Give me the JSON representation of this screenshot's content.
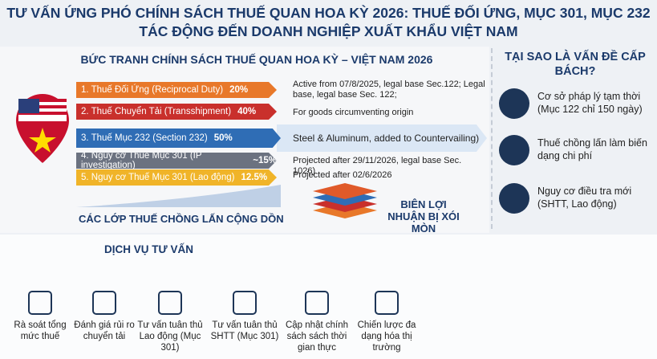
{
  "header": {
    "title_line1": "TƯ VẤN ỨNG PHÓ CHÍNH SÁCH THUẾ QUAN HOA KỲ 2026: THUẾ ĐỐI ỨNG, MỤC 301, MỤC 232",
    "title_line2": "TÁC ĐỘNG ĐẾN DOANH NGHIỆP XUẤT KHẨU VIỆT NAM"
  },
  "left": {
    "title": "BỨC TRANH CHÍNH SÁCH THUẾ QUAN HOA KỲ – VIỆT NAM 2026",
    "layers": [
      {
        "label": "1. Thuế Đối Ứng (Reciprocal Duty)",
        "rate": "20%",
        "note": "Active from 07/8/2025, legal base Sec.122; Legal base, legal base Sec. 122;"
      },
      {
        "label": "2. Thuế Chuyển Tải (Transshipment)",
        "rate": "40%",
        "note": "For goods circumventing origin"
      },
      {
        "label": "3. Thuế Mục 232 (Section 232)",
        "rate": "50%",
        "note": "Steel & Aluminum, added to Countervailing)"
      },
      {
        "label": "4. Nguy cơ Thuế Mục 301 (IP investigation)",
        "rate": "~15%",
        "note": "Projected after 29/11/2026, legal base Sec. 1026)"
      },
      {
        "label": "5. Nguy cơ Thuế Mục 301 (Lao động)",
        "rate": "12.5%",
        "note": "Projected after 02/6/2026"
      }
    ],
    "stack_caption": "CÁC LỚP THUẾ CHỒNG LẤN CỘNG DỒN",
    "margin_caption": "BIÊN LỢI NHUẬN BỊ XÓI MÒN"
  },
  "right": {
    "title": "TẠI SAO LÀ VẤN ĐỀ CẤP BÁCH?",
    "items": [
      "Cơ sở pháp lý tạm thời (Mục 122 chỉ 150 ngày)",
      "Thuế chồng lấn làm biến dạng chi phí",
      "Nguy cơ điều tra mới (SHTT, Lao động)"
    ]
  },
  "services": {
    "title": "DỊCH VỤ TƯ VẤN",
    "items": [
      "Rà soát tổng mức thuế",
      "Đánh giá rủi ro chuyển tải",
      "Tư vấn tuân thủ Lao động (Mục 301)",
      "Tư vấn tuân thủ SHTT (Mục 301)",
      "Cập nhật chính sách sách thời gian thực",
      "Chiến lược đa dạng hóa thị trường"
    ]
  }
}
